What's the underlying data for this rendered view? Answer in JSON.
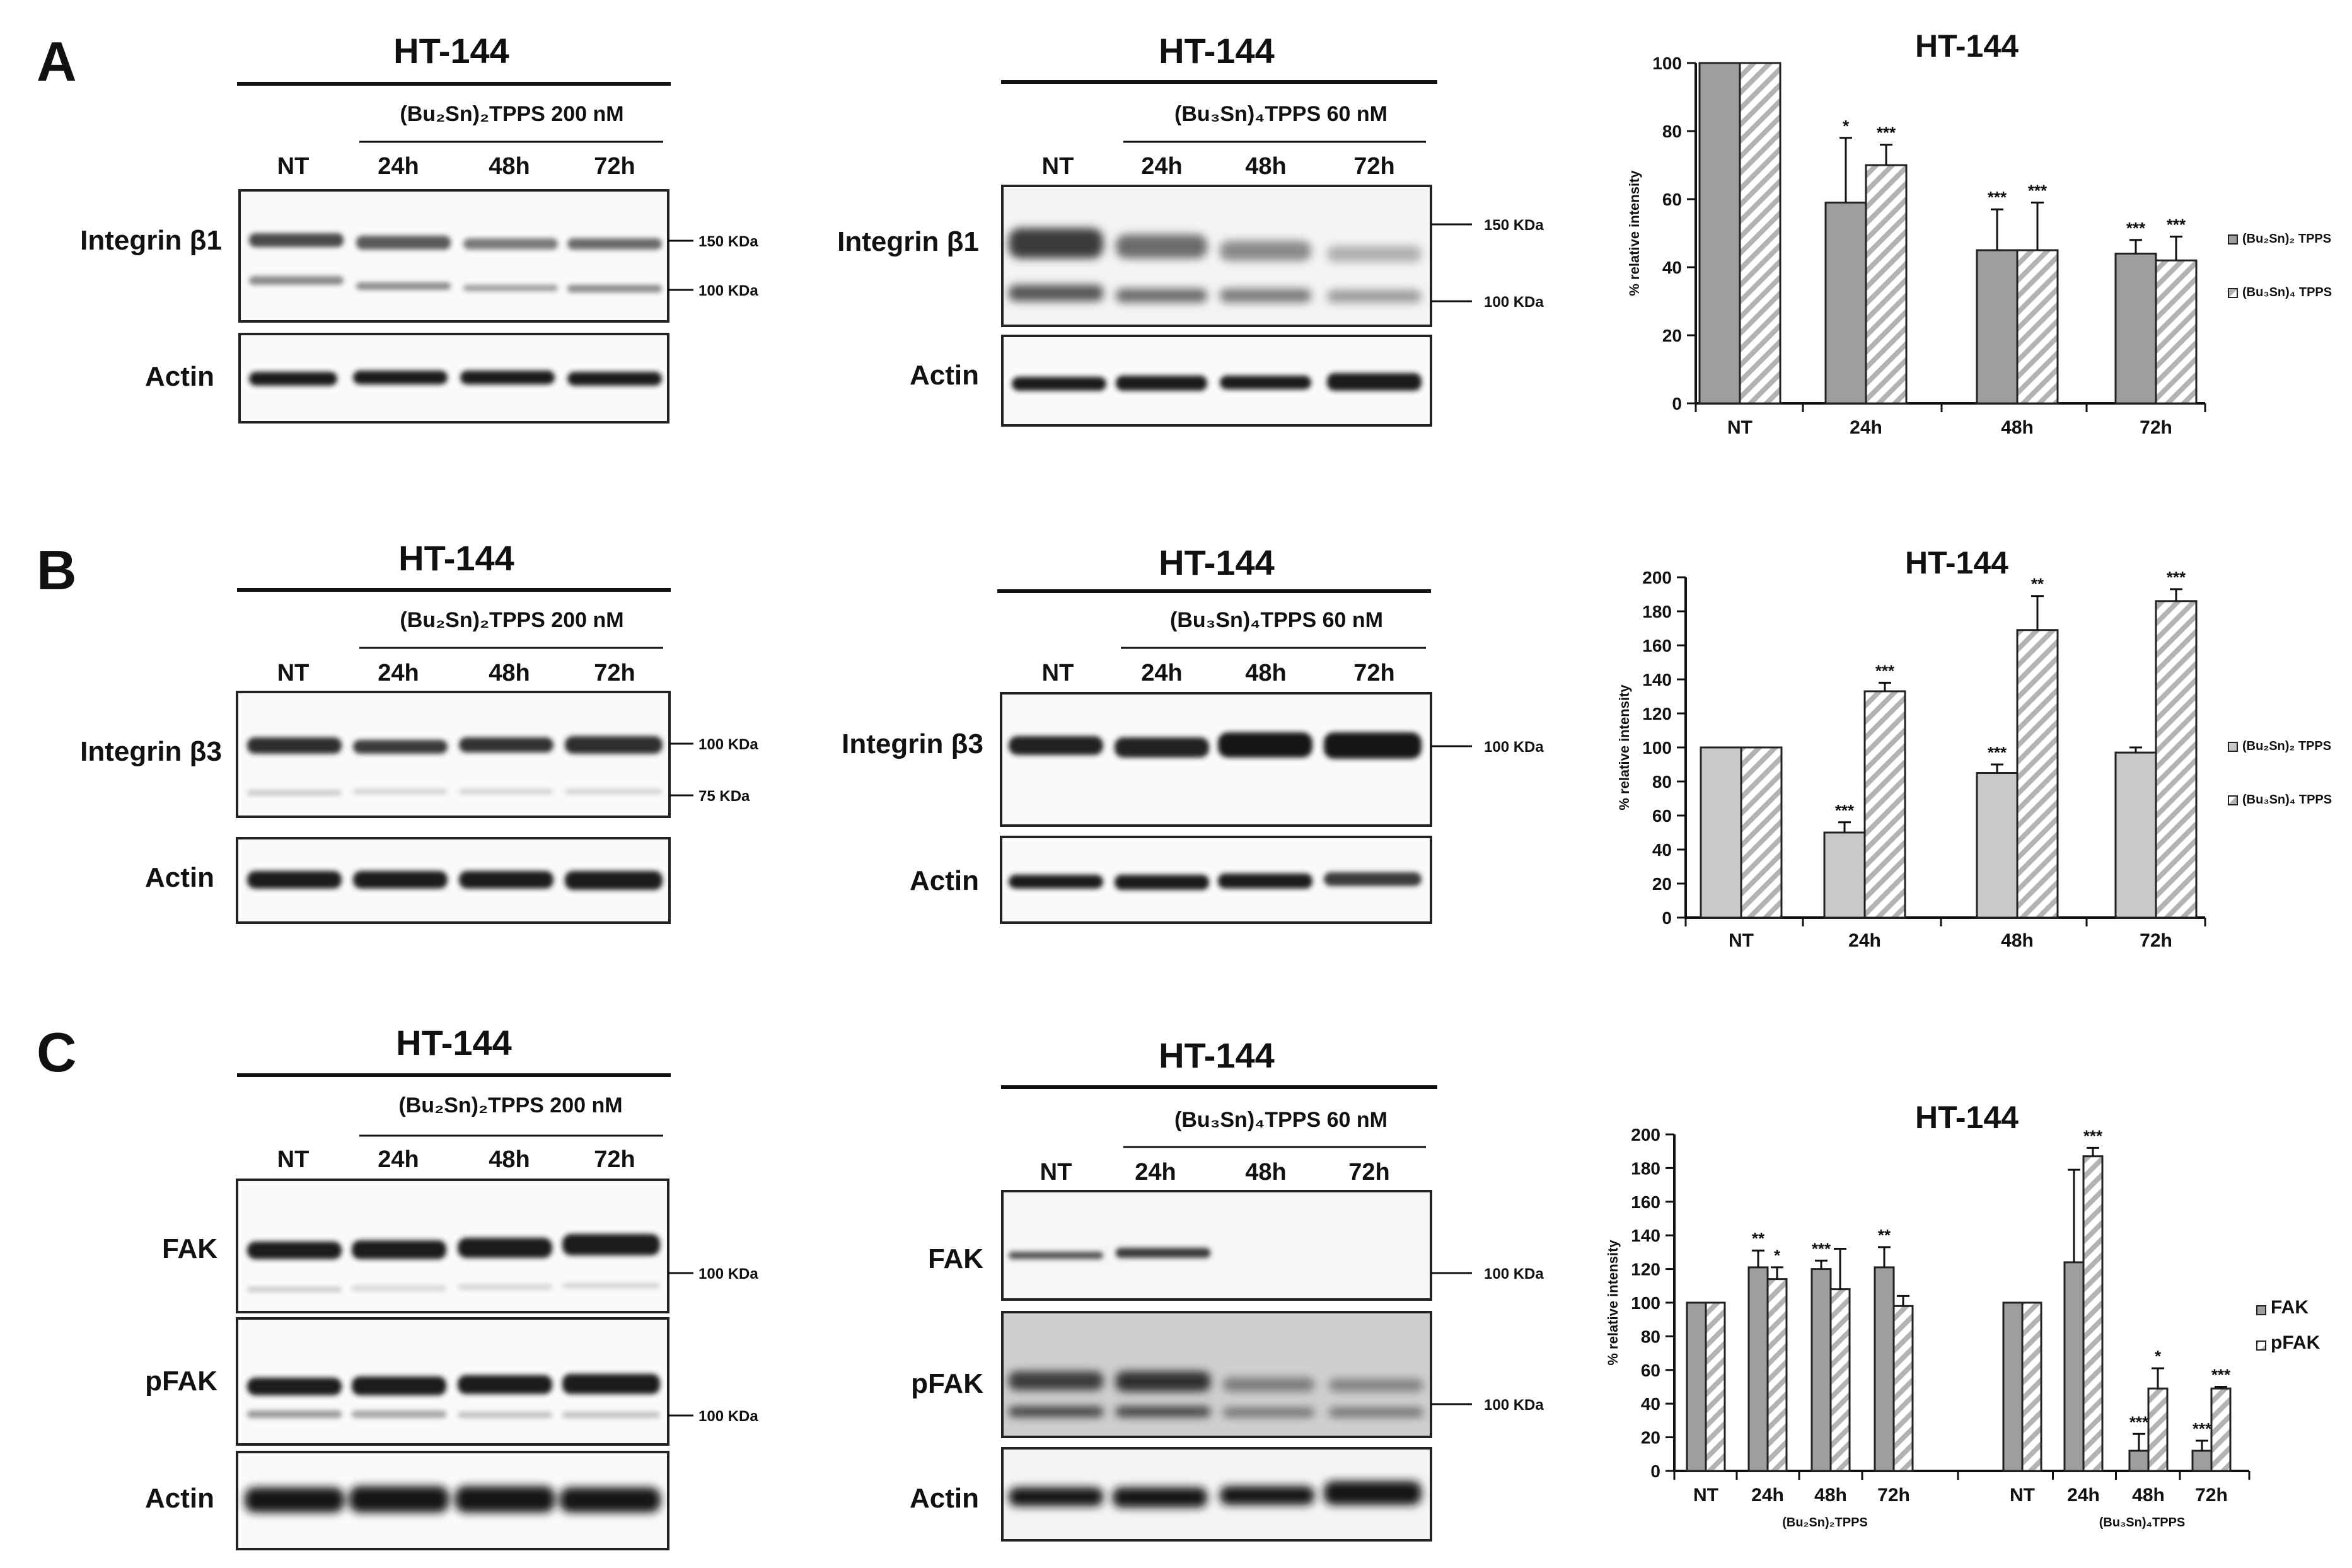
{
  "panels": [
    "A",
    "B",
    "C"
  ],
  "cell_line": "HT-144",
  "treatments": {
    "bu2": "(Bu₂Sn)₂TPPS 200 nM",
    "bu3": "(Bu₃Sn)₄TPPS 60 nM"
  },
  "lanes": [
    "NT",
    "24h",
    "48h",
    "72h"
  ],
  "markers": {
    "a_bu2": [
      "150 KDa",
      "100 KDa"
    ],
    "a_bu3": [
      "150 KDa",
      "100 KDa"
    ],
    "b_bu2": [
      "100 KDa",
      "75 KDa"
    ],
    "b_bu3": [
      "100 KDa"
    ],
    "c_bu2": [
      "100 KDa",
      "100 KDa"
    ],
    "c_bu3": [
      "100 KDa",
      "100 KDa"
    ]
  },
  "blot_labels": {
    "integrin_b1": "Integrin β1",
    "integrin_b3": "Integrin β3",
    "fak": "FAK",
    "pfak": "pFAK",
    "actin": "Actin"
  },
  "chart_data": [
    {
      "type": "bar",
      "panel": "A",
      "title": "HT-144",
      "ylabel": "% relative intensity",
      "categories": [
        "NT",
        "24h",
        "48h",
        "72h"
      ],
      "ylim": [
        0,
        100
      ],
      "yticks": [
        0,
        20,
        40,
        60,
        80,
        100
      ],
      "series": [
        {
          "name": "(Bu₂Sn)₂ TPPS",
          "values": [
            100,
            59,
            45,
            44
          ],
          "errors": [
            0,
            19,
            12,
            4
          ],
          "sig": [
            "",
            "*",
            "***",
            "***"
          ]
        },
        {
          "name": "(Bu₃Sn)₄ TPPS",
          "values": [
            100,
            70,
            45,
            42
          ],
          "errors": [
            0,
            6,
            14,
            7
          ],
          "sig": [
            "",
            "***",
            "***",
            "***"
          ]
        }
      ],
      "legend": "right",
      "colors": {
        "solid": "#9e9e9e",
        "hatch": "#b8b8b8"
      }
    },
    {
      "type": "bar",
      "panel": "B",
      "title": "HT-144",
      "ylabel": "% relative intensity",
      "categories": [
        "NT",
        "24h",
        "48h",
        "72h"
      ],
      "ylim": [
        0,
        200
      ],
      "yticks": [
        0,
        20,
        40,
        60,
        80,
        100,
        120,
        140,
        160,
        180,
        200
      ],
      "series": [
        {
          "name": "(Bu₂Sn)₂ TPPS",
          "values": [
            100,
            50,
            85,
            97
          ],
          "errors": [
            0,
            6,
            5,
            3
          ],
          "sig": [
            "",
            "***",
            "***",
            ""
          ]
        },
        {
          "name": "(Bu₃Sn)₄ TPPS",
          "values": [
            100,
            133,
            169,
            186
          ],
          "errors": [
            0,
            5,
            20,
            7
          ],
          "sig": [
            "",
            "***",
            "**",
            "***"
          ]
        }
      ],
      "legend": "right",
      "colors": {
        "solid": "#c9c9c9",
        "hatch": "#b8b8b8"
      }
    },
    {
      "type": "bar",
      "panel": "C",
      "title": "HT-144",
      "ylabel": "% relative intensity",
      "categories": [
        "NT",
        "24h",
        "48h",
        "72h",
        "NT",
        "24h",
        "48h",
        "72h"
      ],
      "group_labels": [
        "(Bu₂Sn)₂TPPS",
        "(Bu₃Sn)₄TPPS"
      ],
      "ylim": [
        0,
        200
      ],
      "yticks": [
        0,
        20,
        40,
        60,
        80,
        100,
        120,
        140,
        160,
        180,
        200
      ],
      "series": [
        {
          "name": "FAK",
          "values": [
            100,
            121,
            120,
            121,
            100,
            124,
            12,
            12
          ],
          "errors": [
            0,
            10,
            5,
            12,
            0,
            55,
            10,
            6
          ],
          "sig": [
            "",
            "**",
            "***",
            "**",
            "",
            "",
            "***",
            "***"
          ]
        },
        {
          "name": "pFAK",
          "values": [
            100,
            114,
            108,
            98,
            100,
            187,
            49,
            49
          ],
          "errors": [
            0,
            7,
            24,
            6,
            0,
            5,
            12,
            1
          ],
          "sig": [
            "",
            "*",
            "",
            "",
            "",
            "***",
            "*",
            "***"
          ]
        }
      ],
      "legend": "right",
      "colors": {
        "solid": "#9e9e9e",
        "hatch": "#b8b8b8"
      }
    }
  ]
}
